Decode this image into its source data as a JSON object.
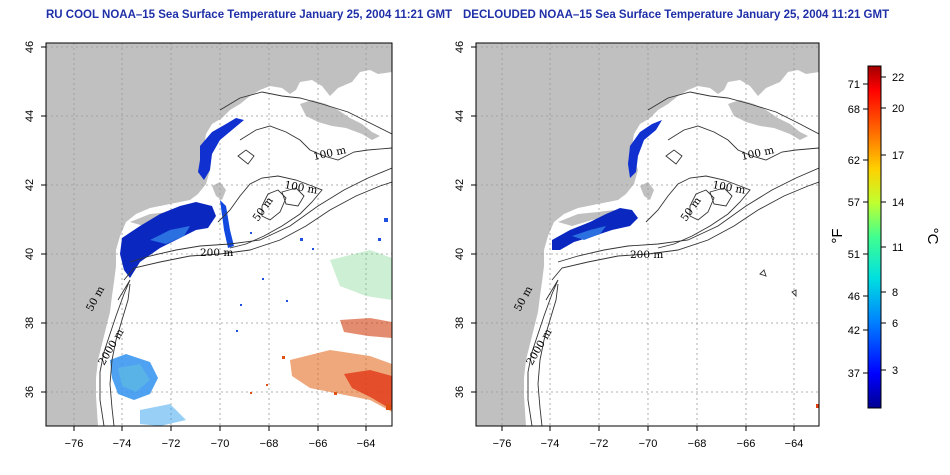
{
  "panels": [
    {
      "id": "left",
      "title": "RU COOL NOAA–15 Sea Surface Temperature January 25, 2004 11:21 GMT"
    },
    {
      "id": "right",
      "title": "DECLOUDED NOAA–15 Sea Surface Temperature January 25, 2004 11:21 GMT"
    }
  ],
  "axes": {
    "x_ticks": [
      "−76",
      "−74",
      "−72",
      "−70",
      "−68",
      "−66",
      "−64"
    ],
    "y_ticks": [
      "46",
      "44",
      "42",
      "40",
      "38",
      "36"
    ],
    "lon_range": [
      -77,
      -63
    ],
    "lat_range": [
      35,
      46
    ]
  },
  "contour_labels": [
    "100 m",
    "100 m",
    "50 m",
    "200 m",
    "50 m",
    "2000 m"
  ],
  "colorbar": {
    "f_label": "°F",
    "c_label": "°C",
    "f_ticks": [
      "71",
      "68",
      "62",
      "57",
      "51",
      "46",
      "42",
      "37"
    ],
    "c_ticks": [
      "22",
      "20",
      "17",
      "14",
      "11",
      "8",
      "6",
      "3"
    ],
    "range_c": [
      0,
      23
    ],
    "colors": [
      "#000090",
      "#0000ff",
      "#0060ff",
      "#00c0ff",
      "#40ffc0",
      "#c0ff40",
      "#ffc000",
      "#ff6000",
      "#ff0000",
      "#a00000"
    ]
  },
  "colors": {
    "land": "#c0c0c0",
    "sst_cold": "#1030d0",
    "sst_warm": "#e06010"
  }
}
